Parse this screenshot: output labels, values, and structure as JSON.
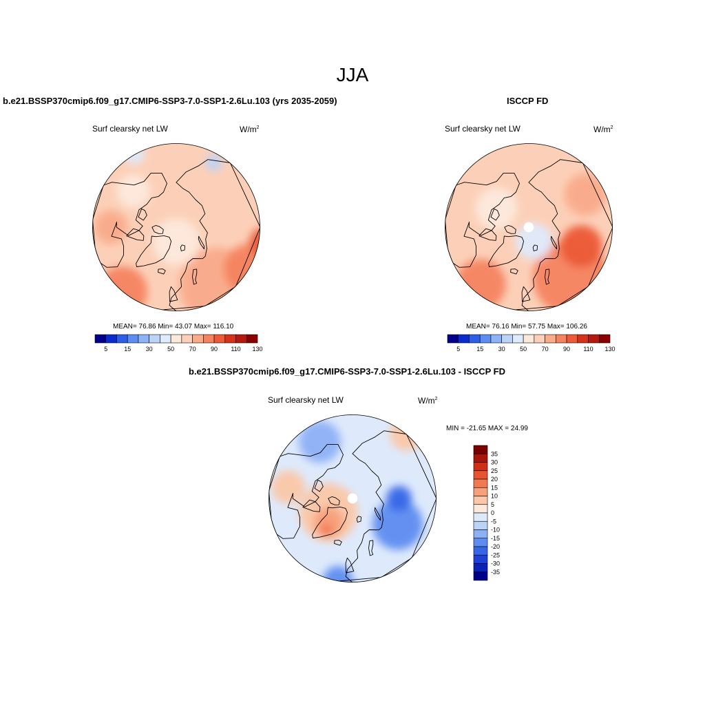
{
  "figure": {
    "title": "JJA"
  },
  "panels": {
    "top_left": {
      "title": "b.e21.BSSP370cmip6.f09_g17.CMIP6-SSP3-7.0-SSP1-2.6Lu.103 (yrs 2035-2059)",
      "variable": "Surf clearsky net LW",
      "units_base": "W/m",
      "units_exp": "2",
      "stats": "MEAN=  76.86  Min=  43.07  Max= 116.10",
      "colorbar_labels": [
        "5",
        "15",
        "30",
        "50",
        "70",
        "90",
        "110",
        "130"
      ]
    },
    "top_right": {
      "title": "ISCCP FD",
      "variable": "Surf clearsky net LW",
      "units_base": "W/m",
      "units_exp": "2",
      "stats": "MEAN=  76.16  Min=  57.75  Max= 106.26",
      "colorbar_labels": [
        "5",
        "15",
        "30",
        "50",
        "70",
        "90",
        "110",
        "130"
      ]
    },
    "bottom": {
      "title": "b.e21.BSSP370cmip6.f09_g17.CMIP6-SSP3-7.0-SSP1-2.6Lu.103 - ISCCP FD",
      "variable": "Surf clearsky net LW",
      "units_base": "W/m",
      "units_exp": "2",
      "stats": "MIN = -21.65 MAX =  24.99",
      "colorbar_labels": [
        "35",
        "30",
        "25",
        "20",
        "15",
        "10",
        "5",
        "0",
        "-5",
        "-10",
        "-15",
        "-20",
        "-25",
        "-30",
        "-35"
      ]
    }
  },
  "colors": {
    "sequential": [
      "#00008b",
      "#0a2bd0",
      "#2c5ee8",
      "#5b8ef0",
      "#8db3f5",
      "#bcd3f8",
      "#dfeafc",
      "#fde9dc",
      "#fcd0b8",
      "#f9ab8a",
      "#f5835f",
      "#ec5a37",
      "#d6311b",
      "#b5190e",
      "#8b0000"
    ],
    "diverging": [
      "#00008b",
      "#0a22b8",
      "#1c40d8",
      "#3566e6",
      "#5e8cf0",
      "#8db0f5",
      "#bcd3f8",
      "#deeafc",
      "#fde9dc",
      "#fbc7a8",
      "#f7a07b",
      "#f27a52",
      "#e6552f",
      "#cf2f16",
      "#a8150a",
      "#7a0000"
    ],
    "land_outline": "#000000"
  },
  "map_fields": {
    "top_left": {
      "base": "#fcd0b8",
      "zones": [
        {
          "c": "#f9ab8a",
          "lon": 35,
          "lat": 52,
          "r": 0.45
        },
        {
          "c": "#f5835f",
          "lon": 60,
          "lat": 45,
          "r": 0.3
        },
        {
          "c": "#ec5a37",
          "lon": 80,
          "lat": 42,
          "r": 0.18
        },
        {
          "c": "#f5835f",
          "lon": -40,
          "lat": 45,
          "r": 0.3
        },
        {
          "c": "#fde9dc",
          "lon": 0,
          "lat": 82,
          "r": 0.28
        },
        {
          "c": "#fde9dc",
          "lon": -130,
          "lat": 60,
          "r": 0.2
        },
        {
          "c": "#dfeafc",
          "lon": -150,
          "lat": 45,
          "r": 0.12
        },
        {
          "c": "#bcd3f8",
          "lon": 150,
          "lat": 50,
          "r": 0.1
        },
        {
          "c": "#f9ab8a",
          "lon": -90,
          "lat": 55,
          "r": 0.2
        }
      ]
    },
    "top_right": {
      "base": "#fcd0b8",
      "zones": [
        {
          "c": "#f5835f",
          "lon": 40,
          "lat": 55,
          "r": 0.45
        },
        {
          "c": "#ec5a37",
          "lon": 70,
          "lat": 60,
          "r": 0.25
        },
        {
          "c": "#f5835f",
          "lon": -40,
          "lat": 50,
          "r": 0.3
        },
        {
          "c": "#dfeafc",
          "lon": 20,
          "lat": 82,
          "r": 0.22
        },
        {
          "c": "#fde9dc",
          "lon": -120,
          "lat": 70,
          "r": 0.25
        },
        {
          "c": "#f9ab8a",
          "lon": 120,
          "lat": 55,
          "r": 0.25
        }
      ]
    },
    "bottom": {
      "base": "#deeafc",
      "zones": [
        {
          "c": "#fbc7a8",
          "lon": -60,
          "lat": 75,
          "r": 0.35
        },
        {
          "c": "#f7a07b",
          "lon": -45,
          "lat": 72,
          "r": 0.18
        },
        {
          "c": "#f27a52",
          "lon": -40,
          "lat": 68,
          "r": 0.08
        },
        {
          "c": "#5e8cf0",
          "lon": 60,
          "lat": 62,
          "r": 0.3
        },
        {
          "c": "#3566e6",
          "lon": 90,
          "lat": 65,
          "r": 0.15
        },
        {
          "c": "#8db0f5",
          "lon": -150,
          "lat": 55,
          "r": 0.25
        },
        {
          "c": "#fbc7a8",
          "lon": -100,
          "lat": 55,
          "r": 0.2
        },
        {
          "c": "#fbc7a8",
          "lon": 140,
          "lat": 45,
          "r": 0.2
        },
        {
          "c": "#5e8cf0",
          "lon": -10,
          "lat": 45,
          "r": 0.18
        }
      ]
    }
  }
}
